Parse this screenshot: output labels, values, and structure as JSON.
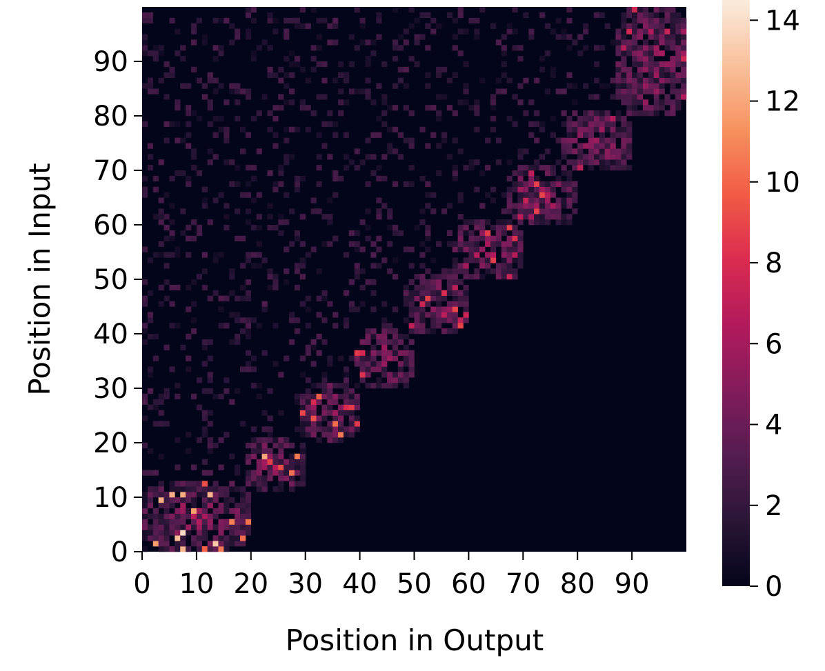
{
  "chart_data": {
    "type": "heatmap",
    "title": "",
    "xlabel": "Position in Output",
    "ylabel": "Position in Input",
    "grid": false,
    "n_rows": 100,
    "n_cols": 100,
    "x_ticks": [
      0,
      10,
      20,
      30,
      40,
      50,
      60,
      70,
      80,
      90
    ],
    "y_ticks": [
      0,
      10,
      20,
      30,
      40,
      50,
      60,
      70,
      80,
      90
    ],
    "colorbar": {
      "ticks": [
        0,
        2,
        4,
        6,
        8,
        10,
        12,
        14
      ],
      "range": [
        0,
        14.5
      ],
      "colormap": "rocket",
      "stops": [
        "#03051a",
        "#2a1537",
        "#541d4f",
        "#821c5c",
        "#b11a5c",
        "#db2b50",
        "#f25a45",
        "#f7915f",
        "#f9c19c",
        "#faebdd"
      ]
    },
    "blocks": [
      {
        "x": [
          0,
          19
        ],
        "y": [
          0,
          12
        ],
        "peak": 14
      },
      {
        "x": [
          19,
          29
        ],
        "y": [
          11,
          20
        ],
        "peak": 12
      },
      {
        "x": [
          29,
          39
        ],
        "y": [
          20,
          30
        ],
        "peak": 11
      },
      {
        "x": [
          39,
          49
        ],
        "y": [
          30,
          40
        ],
        "peak": 11
      },
      {
        "x": [
          48,
          59
        ],
        "y": [
          40,
          50
        ],
        "peak": 10
      },
      {
        "x": [
          57,
          69
        ],
        "y": [
          50,
          60
        ],
        "peak": 9
      },
      {
        "x": [
          67,
          79
        ],
        "y": [
          60,
          70
        ],
        "peak": 9
      },
      {
        "x": [
          77,
          89
        ],
        "y": [
          70,
          80
        ],
        "peak": 8
      },
      {
        "x": [
          87,
          99
        ],
        "y": [
          80,
          99
        ],
        "peak": 8
      }
    ],
    "background_noise": {
      "max": 3,
      "density": 0.18,
      "rule": "below the block diagonal is zero"
    }
  },
  "colors": {
    "background": "#ffffff",
    "zero": "#03051a"
  }
}
